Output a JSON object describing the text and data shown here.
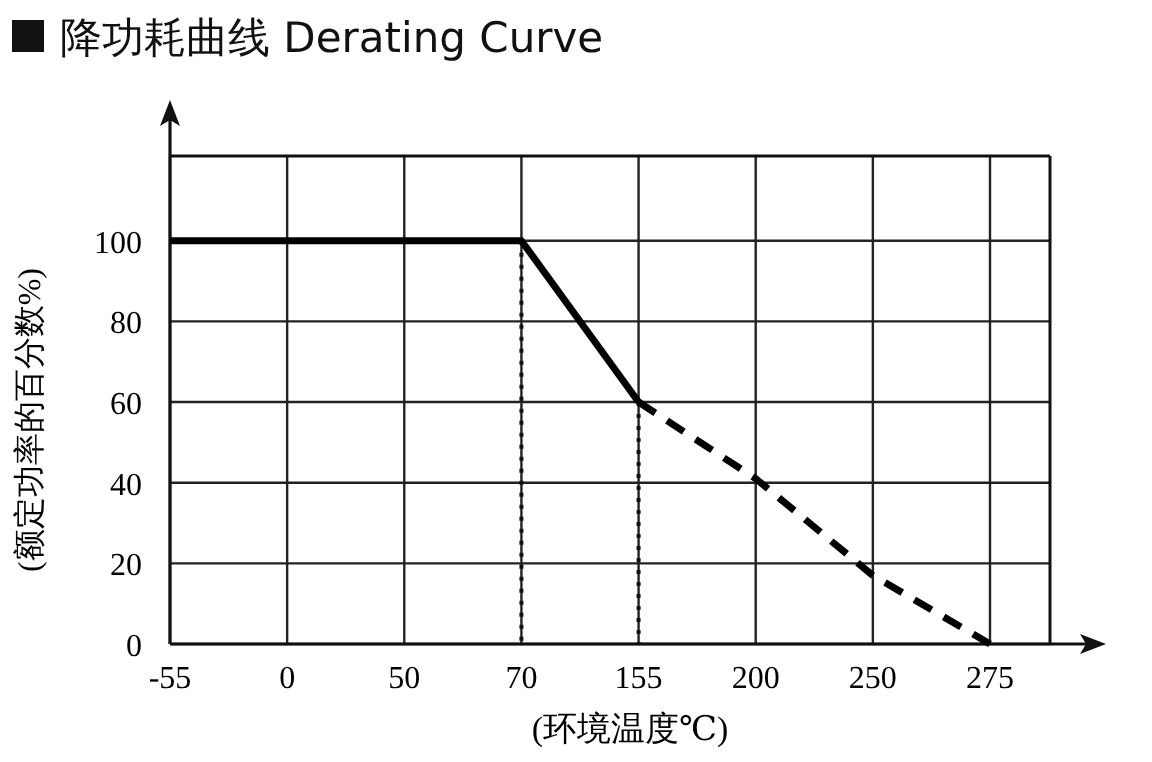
{
  "chart_data": {
    "type": "line",
    "title": "降功耗曲线   Derating Curve",
    "xlabel": "(环境温度℃)",
    "ylabel": "(额定功率的百分数%)",
    "categories": [
      "-55",
      "0",
      "50",
      "70",
      "155",
      "200",
      "250",
      "275"
    ],
    "series": [
      {
        "color": "#000000",
        "line_style": "solid",
        "values": [
          100,
          100,
          100,
          100,
          60,
          null,
          null,
          null
        ]
      },
      {
        "color": "#000000",
        "line_style": "dashed",
        "values": [
          null,
          null,
          null,
          null,
          60,
          41,
          17,
          0
        ]
      }
    ],
    "ylim": [
      0,
      121
    ],
    "yticks": [
      0,
      20,
      40,
      60,
      80,
      100
    ],
    "grid": true,
    "marker": "none",
    "ref_lines": [
      {
        "axis": "x",
        "value": "70",
        "line_style": "dotted"
      },
      {
        "axis": "x",
        "value": "155",
        "line_style": "dotted"
      }
    ]
  }
}
